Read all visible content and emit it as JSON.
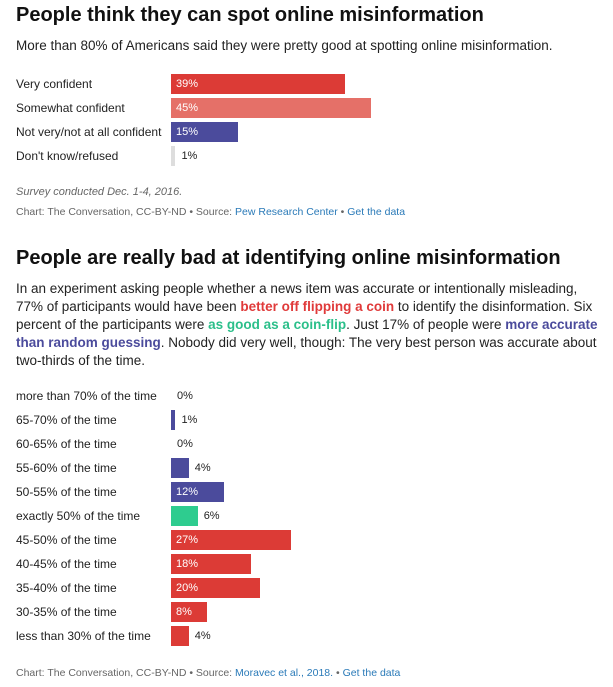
{
  "colors": {
    "red": "#dc3b36",
    "salmon": "#e57068",
    "blue": "#4b4b9c",
    "green": "#2ecc8f",
    "gray": "#dddddd"
  },
  "chart1": {
    "title": "People think they can spot online misinformation",
    "subtitle": "More than 80% of Americans said they were pretty good at spotting online misinformation.",
    "note": "Survey conducted Dec. 1-4, 2016.",
    "source_prefix": "Chart: The Conversation, CC-BY-ND • Source: ",
    "source_link": "Pew Research Center",
    "separator": " • ",
    "get_data": "Get the data"
  },
  "chart2": {
    "title": "People are really bad at identifying online misinformation",
    "para": {
      "t1": "In an experiment asking people whether a news item was accurate or intentionally misleading, 77% of participants would have been ",
      "h1": "better off flipping a coin",
      "t2": " to identify the disinformation. Six percent of the participants were ",
      "h2": "as good as a coin-flip",
      "t3": ". Just 17% of people were ",
      "h3": "more accurate than random guessing",
      "t4": ". Nobody did very well, though: The very best person was accurate about two-thirds of the time."
    },
    "source_prefix": "Chart: The Conversation, CC-BY-ND • Source: ",
    "source_link": "Moravec et al., 2018.",
    "separator": " • ",
    "get_data": "Get the data"
  },
  "chart_data": [
    {
      "type": "bar",
      "orientation": "horizontal",
      "title": "People think they can spot online misinformation",
      "categories": [
        "Very confident",
        "Somewhat confident",
        "Not very/not at all confident",
        "Don't know/refused"
      ],
      "values": [
        39,
        45,
        15,
        1
      ],
      "labels": [
        "39%",
        "45%",
        "15%",
        "1%"
      ],
      "colors": [
        "#dc3b36",
        "#e57068",
        "#4b4b9c",
        "#dddddd"
      ],
      "xlim": [
        0,
        100
      ]
    },
    {
      "type": "bar",
      "orientation": "horizontal",
      "title": "People are really bad at identifying online misinformation",
      "categories": [
        "more than 70% of the time",
        "65-70% of the time",
        "60-65% of the time",
        "55-60% of the time",
        "50-55% of the time",
        "exactly 50% of the time",
        "45-50% of the time",
        "40-45% of the time",
        "35-40% of the time",
        "30-35% of the time",
        "less than 30% of the time"
      ],
      "values": [
        0,
        1,
        0,
        4,
        12,
        6,
        27,
        18,
        20,
        8,
        4
      ],
      "labels": [
        "0%",
        "1%",
        "0%",
        "4%",
        "12%",
        "6%",
        "27%",
        "18%",
        "20%",
        "8%",
        "4%"
      ],
      "colors": [
        "#4b4b9c",
        "#4b4b9c",
        "#4b4b9c",
        "#4b4b9c",
        "#4b4b9c",
        "#2ecc8f",
        "#dc3b36",
        "#dc3b36",
        "#dc3b36",
        "#dc3b36",
        "#dc3b36"
      ],
      "xlim": [
        0,
        100
      ]
    }
  ]
}
